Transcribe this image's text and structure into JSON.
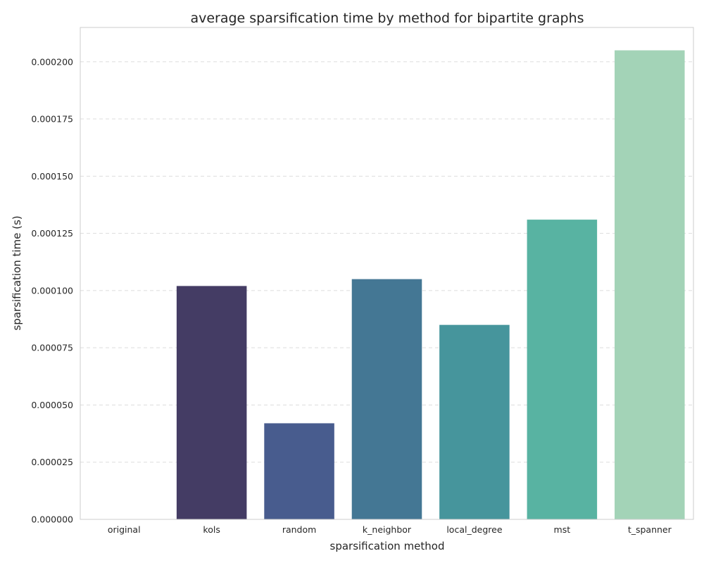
{
  "chart_data": {
    "type": "bar",
    "title": "average sparsification time by method for bipartite graphs",
    "xlabel": "sparsification method",
    "ylabel": "sparsification time (s)",
    "categories": [
      "original",
      "kols",
      "random",
      "k_neighbor",
      "local_degree",
      "mst",
      "t_spanner"
    ],
    "values": [
      0.0,
      0.000102,
      4.2e-05,
      0.000105,
      8.5e-05,
      0.000131,
      0.000205
    ],
    "colors": [
      "#3c2a55",
      "#443c64",
      "#485c8e",
      "#447794",
      "#46959c",
      "#58b3a2",
      "#a3d3b7"
    ],
    "ylim": [
      0,
      0.000215
    ],
    "yticks": [
      0.0,
      2.5e-05,
      5e-05,
      7.5e-05,
      0.0001,
      0.000125,
      0.00015,
      0.000175,
      0.0002
    ],
    "ytick_labels": [
      "0.000000",
      "0.000025",
      "0.000050",
      "0.000075",
      "0.000100",
      "0.000125",
      "0.000150",
      "0.000175",
      "0.000200"
    ],
    "grid": "y-dashed",
    "legend": "none"
  }
}
